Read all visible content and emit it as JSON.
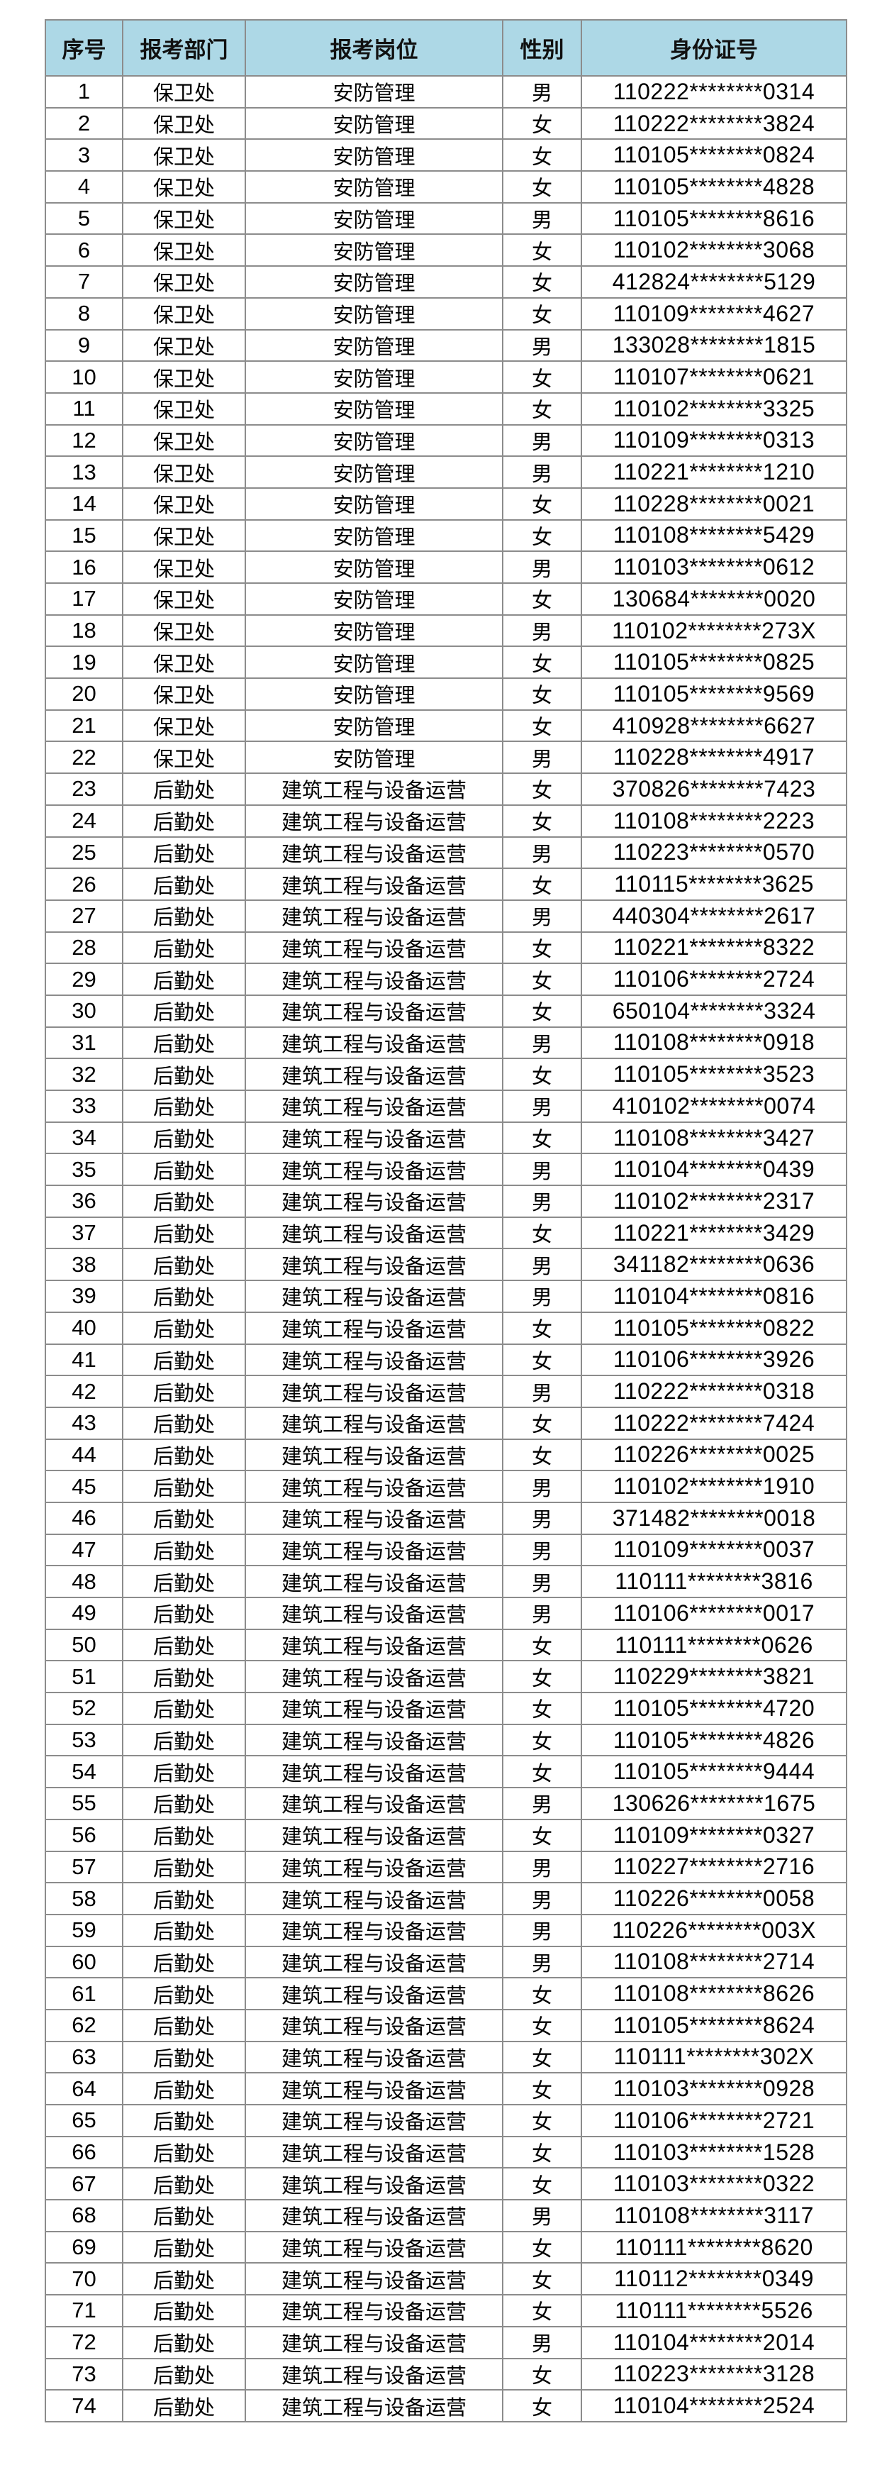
{
  "header": {
    "seq": "序号",
    "dept": "报考部门",
    "post": "报考岗位",
    "gender": "性别",
    "id": "身份证号"
  },
  "colors": {
    "header_bg": "#add8e6",
    "border": "#8c8c8c"
  },
  "rows": [
    [
      "1",
      "保卫处",
      "安防管理",
      "男",
      "110222********0314"
    ],
    [
      "2",
      "保卫处",
      "安防管理",
      "女",
      "110222********3824"
    ],
    [
      "3",
      "保卫处",
      "安防管理",
      "女",
      "110105********0824"
    ],
    [
      "4",
      "保卫处",
      "安防管理",
      "女",
      "110105********4828"
    ],
    [
      "5",
      "保卫处",
      "安防管理",
      "男",
      "110105********8616"
    ],
    [
      "6",
      "保卫处",
      "安防管理",
      "女",
      "110102********3068"
    ],
    [
      "7",
      "保卫处",
      "安防管理",
      "女",
      "412824********5129"
    ],
    [
      "8",
      "保卫处",
      "安防管理",
      "女",
      "110109********4627"
    ],
    [
      "9",
      "保卫处",
      "安防管理",
      "男",
      "133028********1815"
    ],
    [
      "10",
      "保卫处",
      "安防管理",
      "女",
      "110107********0621"
    ],
    [
      "11",
      "保卫处",
      "安防管理",
      "女",
      "110102********3325"
    ],
    [
      "12",
      "保卫处",
      "安防管理",
      "男",
      "110109********0313"
    ],
    [
      "13",
      "保卫处",
      "安防管理",
      "男",
      "110221********1210"
    ],
    [
      "14",
      "保卫处",
      "安防管理",
      "女",
      "110228********0021"
    ],
    [
      "15",
      "保卫处",
      "安防管理",
      "女",
      "110108********5429"
    ],
    [
      "16",
      "保卫处",
      "安防管理",
      "男",
      "110103********0612"
    ],
    [
      "17",
      "保卫处",
      "安防管理",
      "女",
      "130684********0020"
    ],
    [
      "18",
      "保卫处",
      "安防管理",
      "男",
      "110102********273X"
    ],
    [
      "19",
      "保卫处",
      "安防管理",
      "女",
      "110105********0825"
    ],
    [
      "20",
      "保卫处",
      "安防管理",
      "女",
      "110105********9569"
    ],
    [
      "21",
      "保卫处",
      "安防管理",
      "女",
      "410928********6627"
    ],
    [
      "22",
      "保卫处",
      "安防管理",
      "男",
      "110228********4917"
    ],
    [
      "23",
      "后勤处",
      "建筑工程与设备运营",
      "女",
      "370826********7423"
    ],
    [
      "24",
      "后勤处",
      "建筑工程与设备运营",
      "女",
      "110108********2223"
    ],
    [
      "25",
      "后勤处",
      "建筑工程与设备运营",
      "男",
      "110223********0570"
    ],
    [
      "26",
      "后勤处",
      "建筑工程与设备运营",
      "女",
      "110115********3625"
    ],
    [
      "27",
      "后勤处",
      "建筑工程与设备运营",
      "男",
      "440304********2617"
    ],
    [
      "28",
      "后勤处",
      "建筑工程与设备运营",
      "女",
      "110221********8322"
    ],
    [
      "29",
      "后勤处",
      "建筑工程与设备运营",
      "女",
      "110106********2724"
    ],
    [
      "30",
      "后勤处",
      "建筑工程与设备运营",
      "女",
      "650104********3324"
    ],
    [
      "31",
      "后勤处",
      "建筑工程与设备运营",
      "男",
      "110108********0918"
    ],
    [
      "32",
      "后勤处",
      "建筑工程与设备运营",
      "女",
      "110105********3523"
    ],
    [
      "33",
      "后勤处",
      "建筑工程与设备运营",
      "男",
      "410102********0074"
    ],
    [
      "34",
      "后勤处",
      "建筑工程与设备运营",
      "女",
      "110108********3427"
    ],
    [
      "35",
      "后勤处",
      "建筑工程与设备运营",
      "男",
      "110104********0439"
    ],
    [
      "36",
      "后勤处",
      "建筑工程与设备运营",
      "男",
      "110102********2317"
    ],
    [
      "37",
      "后勤处",
      "建筑工程与设备运营",
      "女",
      "110221********3429"
    ],
    [
      "38",
      "后勤处",
      "建筑工程与设备运营",
      "男",
      "341182********0636"
    ],
    [
      "39",
      "后勤处",
      "建筑工程与设备运营",
      "男",
      "110104********0816"
    ],
    [
      "40",
      "后勤处",
      "建筑工程与设备运营",
      "女",
      "110105********0822"
    ],
    [
      "41",
      "后勤处",
      "建筑工程与设备运营",
      "女",
      "110106********3926"
    ],
    [
      "42",
      "后勤处",
      "建筑工程与设备运营",
      "男",
      "110222********0318"
    ],
    [
      "43",
      "后勤处",
      "建筑工程与设备运营",
      "女",
      "110222********7424"
    ],
    [
      "44",
      "后勤处",
      "建筑工程与设备运营",
      "女",
      "110226********0025"
    ],
    [
      "45",
      "后勤处",
      "建筑工程与设备运营",
      "男",
      "110102********1910"
    ],
    [
      "46",
      "后勤处",
      "建筑工程与设备运营",
      "男",
      "371482********0018"
    ],
    [
      "47",
      "后勤处",
      "建筑工程与设备运营",
      "男",
      "110109********0037"
    ],
    [
      "48",
      "后勤处",
      "建筑工程与设备运营",
      "男",
      "110111********3816"
    ],
    [
      "49",
      "后勤处",
      "建筑工程与设备运营",
      "男",
      "110106********0017"
    ],
    [
      "50",
      "后勤处",
      "建筑工程与设备运营",
      "女",
      "110111********0626"
    ],
    [
      "51",
      "后勤处",
      "建筑工程与设备运营",
      "女",
      "110229********3821"
    ],
    [
      "52",
      "后勤处",
      "建筑工程与设备运营",
      "女",
      "110105********4720"
    ],
    [
      "53",
      "后勤处",
      "建筑工程与设备运营",
      "女",
      "110105********4826"
    ],
    [
      "54",
      "后勤处",
      "建筑工程与设备运营",
      "女",
      "110105********9444"
    ],
    [
      "55",
      "后勤处",
      "建筑工程与设备运营",
      "男",
      "130626********1675"
    ],
    [
      "56",
      "后勤处",
      "建筑工程与设备运营",
      "女",
      "110109********0327"
    ],
    [
      "57",
      "后勤处",
      "建筑工程与设备运营",
      "男",
      "110227********2716"
    ],
    [
      "58",
      "后勤处",
      "建筑工程与设备运营",
      "男",
      "110226********0058"
    ],
    [
      "59",
      "后勤处",
      "建筑工程与设备运营",
      "男",
      "110226********003X"
    ],
    [
      "60",
      "后勤处",
      "建筑工程与设备运营",
      "男",
      "110108********2714"
    ],
    [
      "61",
      "后勤处",
      "建筑工程与设备运营",
      "女",
      "110108********8626"
    ],
    [
      "62",
      "后勤处",
      "建筑工程与设备运营",
      "女",
      "110105********8624"
    ],
    [
      "63",
      "后勤处",
      "建筑工程与设备运营",
      "女",
      "110111********302X"
    ],
    [
      "64",
      "后勤处",
      "建筑工程与设备运营",
      "女",
      "110103********0928"
    ],
    [
      "65",
      "后勤处",
      "建筑工程与设备运营",
      "女",
      "110106********2721"
    ],
    [
      "66",
      "后勤处",
      "建筑工程与设备运营",
      "女",
      "110103********1528"
    ],
    [
      "67",
      "后勤处",
      "建筑工程与设备运营",
      "女",
      "110103********0322"
    ],
    [
      "68",
      "后勤处",
      "建筑工程与设备运营",
      "男",
      "110108********3117"
    ],
    [
      "69",
      "后勤处",
      "建筑工程与设备运营",
      "女",
      "110111********8620"
    ],
    [
      "70",
      "后勤处",
      "建筑工程与设备运营",
      "女",
      "110112********0349"
    ],
    [
      "71",
      "后勤处",
      "建筑工程与设备运营",
      "女",
      "110111********5526"
    ],
    [
      "72",
      "后勤处",
      "建筑工程与设备运营",
      "男",
      "110104********2014"
    ],
    [
      "73",
      "后勤处",
      "建筑工程与设备运营",
      "女",
      "110223********3128"
    ],
    [
      "74",
      "后勤处",
      "建筑工程与设备运营",
      "女",
      "110104********2524"
    ]
  ]
}
